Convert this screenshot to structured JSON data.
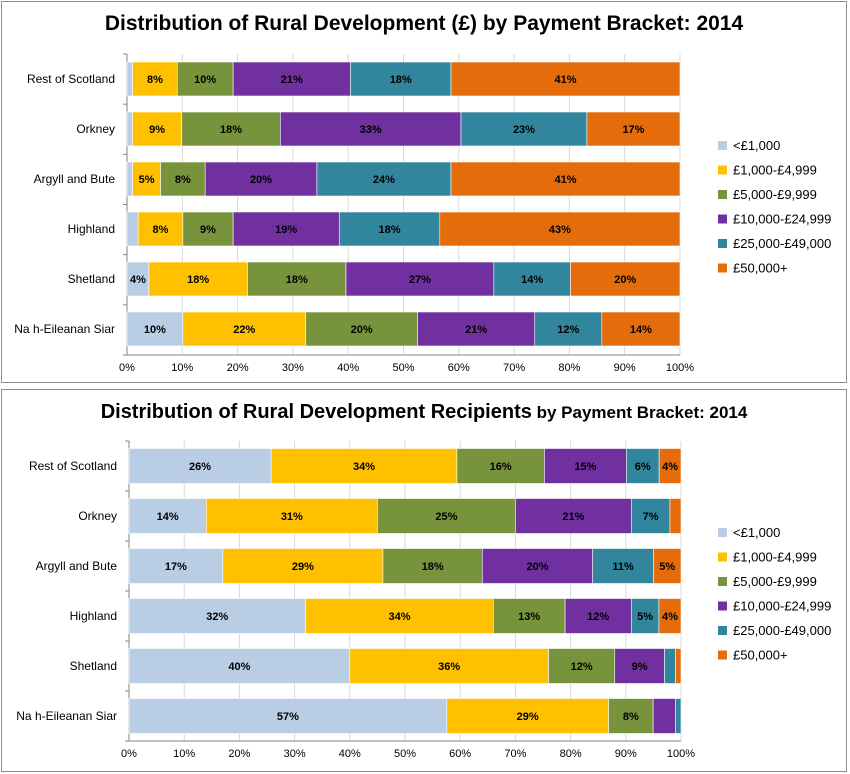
{
  "chart_data": [
    {
      "type": "bar",
      "orientation": "horizontal",
      "stacked": true,
      "title": "Distribution of Rural Development (£) by Payment Bracket: 2014",
      "categories": [
        "Rest of Scotland",
        "Orkney",
        "Argyll and Bute",
        "Highland",
        "Shetland",
        "Na h-Eileanan Siar"
      ],
      "x_tick_labels": [
        "0%",
        "10%",
        "20%",
        "30%",
        "40%",
        "50%",
        "60%",
        "70%",
        "80%",
        "90%",
        "100%"
      ],
      "xlim": [
        0,
        100
      ],
      "grid": true,
      "legend_position": "right",
      "series": [
        {
          "name": "<£1,000",
          "color": "#b9cde5",
          "values": [
            1,
            1,
            1,
            2,
            4,
            10
          ],
          "labels": [
            "",
            "",
            "",
            "",
            "4%",
            "10%"
          ]
        },
        {
          "name": "£1,000-£4,999",
          "color": "#ffc000",
          "values": [
            8,
            9,
            5,
            8,
            18,
            22
          ],
          "labels": [
            "8%",
            "9%",
            "5%",
            "8%",
            "18%",
            "22%"
          ]
        },
        {
          "name": "£5,000-£9,999",
          "color": "#77933c",
          "values": [
            10,
            18,
            8,
            9,
            18,
            20
          ],
          "labels": [
            "10%",
            "18%",
            "8%",
            "9%",
            "18%",
            "20%"
          ]
        },
        {
          "name": "£10,000-£24,999",
          "color": "#7030a0",
          "values": [
            21,
            33,
            20,
            19,
            27,
            21
          ],
          "labels": [
            "21%",
            "33%",
            "20%",
            "19%",
            "27%",
            "21%"
          ]
        },
        {
          "name": "£25,000-£49,000",
          "color": "#31859c",
          "values": [
            18,
            23,
            24,
            18,
            14,
            12
          ],
          "labels": [
            "18%",
            "23%",
            "24%",
            "18%",
            "14%",
            "12%"
          ]
        },
        {
          "name": "£50,000+",
          "color": "#e46c0a",
          "values": [
            41,
            17,
            41,
            43,
            20,
            14
          ],
          "labels": [
            "41%",
            "17%",
            "41%",
            "43%",
            "20%",
            "14%"
          ]
        }
      ]
    },
    {
      "type": "bar",
      "orientation": "horizontal",
      "stacked": true,
      "title": "Distribution of Rural Development Recipients by Payment Bracket: 2014",
      "categories": [
        "Rest of Scotland",
        "Orkney",
        "Argyll and Bute",
        "Highland",
        "Shetland",
        "Na h-Eileanan Siar"
      ],
      "x_tick_labels": [
        "0%",
        "10%",
        "20%",
        "30%",
        "40%",
        "50%",
        "60%",
        "70%",
        "80%",
        "90%",
        "100%"
      ],
      "xlim": [
        0,
        100
      ],
      "grid": true,
      "legend_position": "right",
      "series": [
        {
          "name": "<£1,000",
          "color": "#b9cde5",
          "values": [
            26,
            14,
            17,
            32,
            40,
            57
          ],
          "labels": [
            "26%",
            "14%",
            "17%",
            "32%",
            "40%",
            "57%"
          ]
        },
        {
          "name": "£1,000-£4,999",
          "color": "#ffc000",
          "values": [
            34,
            31,
            29,
            34,
            36,
            29
          ],
          "labels": [
            "34%",
            "31%",
            "29%",
            "34%",
            "36%",
            "29%"
          ]
        },
        {
          "name": "£5,000-£9,999",
          "color": "#77933c",
          "values": [
            16,
            25,
            18,
            13,
            12,
            8
          ],
          "labels": [
            "16%",
            "25%",
            "18%",
            "13%",
            "12%",
            "8%"
          ]
        },
        {
          "name": "£10,000-£24,999",
          "color": "#7030a0",
          "values": [
            15,
            21,
            20,
            12,
            9,
            4
          ],
          "labels": [
            "15%",
            "21%",
            "20%",
            "12%",
            "9%",
            ""
          ]
        },
        {
          "name": "£25,000-£49,000",
          "color": "#31859c",
          "values": [
            6,
            7,
            11,
            5,
            2,
            1
          ],
          "labels": [
            "6%",
            "7%",
            "11%",
            "5%",
            "",
            ""
          ]
        },
        {
          "name": "£50,000+",
          "color": "#e46c0a",
          "values": [
            4,
            2,
            5,
            4,
            1,
            0
          ],
          "labels": [
            "4%",
            "",
            "5%",
            "4%",
            "",
            ""
          ]
        }
      ]
    }
  ],
  "titles": {
    "chart1_main": "Distribution of Rural Development (£) by Payment Bracket: 2014",
    "chart2_main": "Distribution of Rural Development Recipients",
    "chart2_suffix": " by Payment Bracket: 2014"
  }
}
